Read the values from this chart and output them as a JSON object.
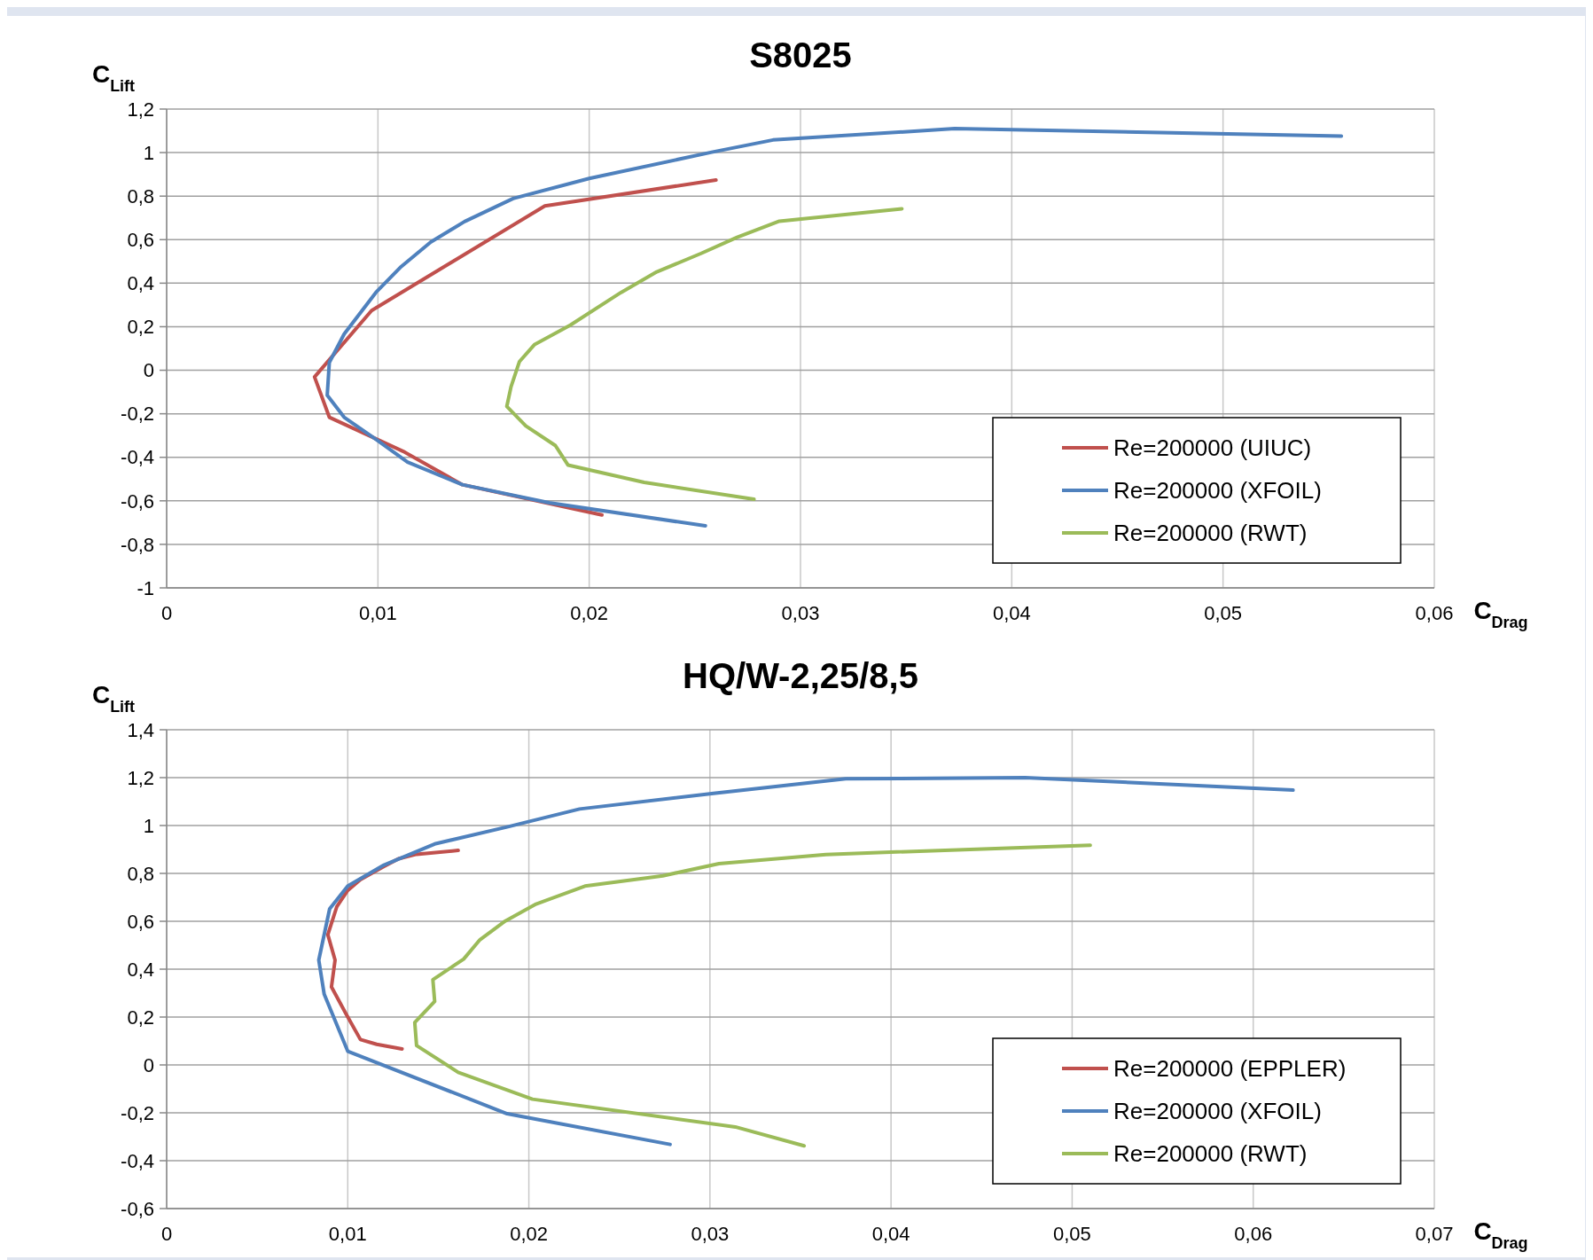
{
  "chart_data": [
    {
      "type": "line",
      "title": "S8025",
      "xlabel": "C$_{Drag}$",
      "ylabel": "C$_{Lift}$",
      "xlim": [
        0,
        0.06
      ],
      "xticks": [
        0,
        {
          "value": 0.01,
          "label": "0,01"
        },
        {
          "value": 0.02,
          "label": "0,02"
        },
        {
          "value": 0.03,
          "label": "0,03"
        },
        {
          "value": 0.04,
          "label": "0,04"
        },
        {
          "value": 0.05,
          "label": "0,05"
        },
        {
          "value": 0.06,
          "label": "0,06"
        }
      ],
      "ylim": [
        -1,
        1.2
      ],
      "yticks": [
        -1,
        {
          "value": -0.8,
          "label": "-0,8"
        },
        {
          "value": -0.6,
          "label": "-0,6"
        },
        {
          "value": -0.4,
          "label": "-0,4"
        },
        {
          "value": -0.2,
          "label": "-0,2"
        },
        0,
        {
          "value": 0.2,
          "label": "0,2"
        },
        {
          "value": 0.4,
          "label": "0,4"
        },
        {
          "value": 0.6,
          "label": "0,6"
        },
        {
          "value": 0.8,
          "label": "0,8"
        },
        1,
        {
          "value": 1.2,
          "label": "1,2"
        }
      ],
      "grid": true,
      "legend": "bottom right",
      "series": [
        {
          "name": "Re=200000 (UIUC)",
          "color": "#c0504d",
          "x": [
            0.0206,
            0.014,
            0.0112,
            0.0077,
            0.007,
            0.0097,
            0.0179,
            0.026
          ],
          "values": [
            -0.665,
            -0.526,
            -0.373,
            -0.216,
            -0.031,
            0.274,
            0.755,
            0.874
          ]
        },
        {
          "name": "Re=200000 (XFOIL)",
          "color": "#4f81bd",
          "x": [
            0.0255,
            0.0181,
            0.014,
            0.0114,
            0.0099,
            0.0084,
            0.0076,
            0.0077,
            0.0084,
            0.0099,
            0.0111,
            0.0125,
            0.0141,
            0.0164,
            0.02,
            0.0258,
            0.0287,
            0.0373,
            0.0556
          ],
          "values": [
            -0.715,
            -0.609,
            -0.526,
            -0.422,
            -0.317,
            -0.216,
            -0.115,
            0.036,
            0.166,
            0.357,
            0.476,
            0.589,
            0.683,
            0.789,
            0.881,
            1.002,
            1.058,
            1.11,
            1.076
          ]
        },
        {
          "name": "Re=200000 (RWT)",
          "color": "#9bbb59",
          "x": [
            0.0278,
            0.0226,
            0.019,
            0.0184,
            0.017,
            0.0161,
            0.0163,
            0.0167,
            0.0174,
            0.0191,
            0.0215,
            0.0232,
            0.0253,
            0.027,
            0.029,
            0.0348
          ],
          "values": [
            -0.593,
            -0.515,
            -0.436,
            -0.346,
            -0.256,
            -0.166,
            -0.076,
            0.04,
            0.117,
            0.207,
            0.357,
            0.452,
            0.537,
            0.611,
            0.685,
            0.742
          ]
        }
      ]
    },
    {
      "type": "line",
      "title": "HQ/W-2,25/8,5",
      "xlabel": "C$_{Drag}$",
      "ylabel": "C$_{Lift}$",
      "xlim": [
        0,
        0.07
      ],
      "xticks": [
        0,
        {
          "value": 0.01,
          "label": "0,01"
        },
        {
          "value": 0.02,
          "label": "0,02"
        },
        {
          "value": 0.03,
          "label": "0,03"
        },
        {
          "value": 0.04,
          "label": "0,04"
        },
        {
          "value": 0.05,
          "label": "0,05"
        },
        {
          "value": 0.06,
          "label": "0,06"
        },
        {
          "value": 0.07,
          "label": "0,07"
        }
      ],
      "ylim": [
        -0.6,
        1.4
      ],
      "yticks": [
        {
          "value": -0.6,
          "label": "-0,6"
        },
        {
          "value": -0.4,
          "label": "-0,4"
        },
        {
          "value": -0.2,
          "label": "-0,2"
        },
        0,
        {
          "value": 0.2,
          "label": "0,2"
        },
        {
          "value": 0.4,
          "label": "0,4"
        },
        {
          "value": 0.6,
          "label": "0,6"
        },
        {
          "value": 0.8,
          "label": "0,8"
        },
        1,
        {
          "value": 1.2,
          "label": "1,2"
        },
        {
          "value": 1.4,
          "label": "1,4"
        }
      ],
      "grid": true,
      "legend": "bottom right",
      "series": [
        {
          "name": "Re=200000 (EPPLER)",
          "color": "#c0504d",
          "x": [
            0.013,
            0.0116,
            0.0107,
            0.0099,
            0.0091,
            0.0093,
            0.0089,
            0.0094,
            0.01,
            0.0107,
            0.0119,
            0.0128,
            0.0138,
            0.0161
          ],
          "values": [
            0.067,
            0.086,
            0.106,
            0.214,
            0.326,
            0.438,
            0.544,
            0.662,
            0.729,
            0.774,
            0.825,
            0.861,
            0.88,
            0.896
          ]
        },
        {
          "name": "Re=200000 (XFOIL)",
          "color": "#4f81bd",
          "x": [
            0.0278,
            0.0188,
            0.01,
            0.0087,
            0.0084,
            0.009,
            0.01,
            0.012,
            0.0148,
            0.0189,
            0.0228,
            0.0302,
            0.0375,
            0.0474,
            0.0622
          ],
          "values": [
            -0.332,
            -0.204,
            0.057,
            0.295,
            0.438,
            0.652,
            0.747,
            0.835,
            0.923,
            0.996,
            1.069,
            1.134,
            1.195,
            1.2,
            1.148
          ]
        },
        {
          "name": "Re=200000 (RWT)",
          "color": "#9bbb59",
          "x": [
            0.0352,
            0.0314,
            0.0202,
            0.0161,
            0.0138,
            0.0137,
            0.0148,
            0.0147,
            0.0164,
            0.0173,
            0.0187,
            0.0204,
            0.0231,
            0.0274,
            0.0305,
            0.0364,
            0.051
          ],
          "values": [
            -0.338,
            -0.259,
            -0.143,
            -0.031,
            0.081,
            0.177,
            0.265,
            0.356,
            0.442,
            0.523,
            0.601,
            0.672,
            0.747,
            0.79,
            0.841,
            0.879,
            0.918
          ]
        }
      ]
    }
  ]
}
